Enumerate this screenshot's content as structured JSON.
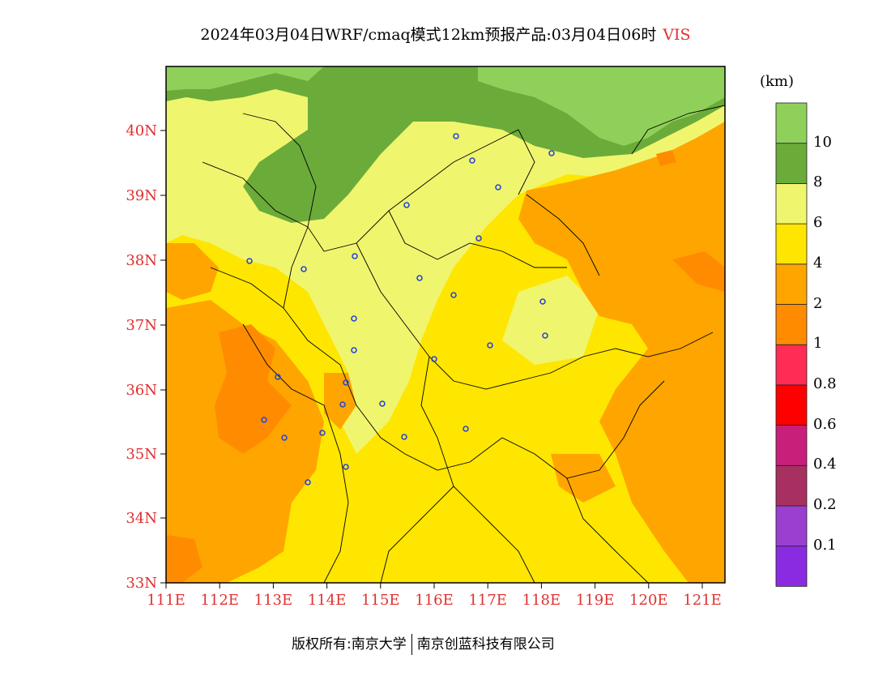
{
  "title": {
    "text": "2024年03月04日WRF/cmaq模式12km预报产品:03月04日06时",
    "variable": "VIS"
  },
  "colorbar": {
    "unit": "(km)",
    "colors": [
      "#8a2be2",
      "#9b3fd0",
      "#a83060",
      "#c8207a",
      "#ff0000",
      "#ff2d55",
      "#ff8c00",
      "#ffa500",
      "#ffe600",
      "#f0f56e",
      "#6bab3a",
      "#8fd05a"
    ],
    "labels": [
      "0.1",
      "0.2",
      "0.4",
      "0.6",
      "0.8",
      "1",
      "2",
      "4",
      "6",
      "8",
      "10"
    ]
  },
  "axes": {
    "lat_labels": [
      "40N",
      "39N",
      "38N",
      "37N",
      "36N",
      "35N",
      "34N",
      "33N"
    ],
    "lon_labels": [
      "111E",
      "112E",
      "113E",
      "114E",
      "115E",
      "116E",
      "117E",
      "118E",
      "119E",
      "120E",
      "121E"
    ]
  },
  "footer": {
    "copyright": "版权所有:南京大学",
    "company": "南京创蓝科技有限公司"
  }
}
